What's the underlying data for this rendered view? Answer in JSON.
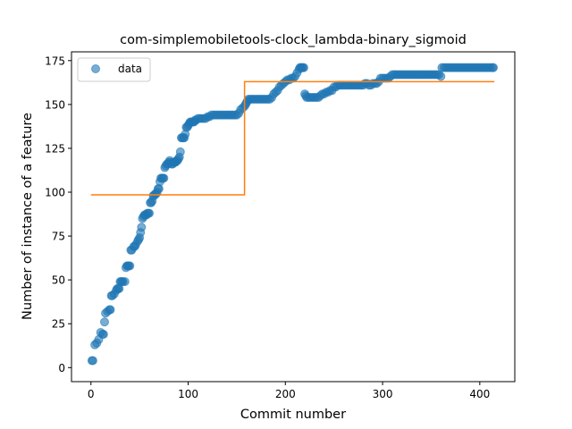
{
  "chart_data": {
    "type": "scatter",
    "title": "com-simplemobiletools-clock_lambda-binary_sigmoid",
    "xlabel": "Commit number",
    "ylabel": "Number of instance of a feature",
    "xlim": [
      -20,
      436
    ],
    "ylim": [
      -8,
      180
    ],
    "xticks": [
      0,
      100,
      200,
      300,
      400
    ],
    "yticks": [
      0,
      25,
      50,
      75,
      100,
      125,
      150,
      175
    ],
    "grid": false,
    "legend": {
      "position": "top-left",
      "entries": [
        "data"
      ]
    },
    "series": [
      {
        "name": "data",
        "kind": "scatter",
        "color": "#1f77b4",
        "points": [
          [
            1,
            4
          ],
          [
            2,
            4
          ],
          [
            4,
            13
          ],
          [
            6,
            14
          ],
          [
            8,
            16
          ],
          [
            10,
            20
          ],
          [
            12,
            19
          ],
          [
            13,
            19
          ],
          [
            14,
            26
          ],
          [
            15,
            31
          ],
          [
            17,
            32
          ],
          [
            19,
            33
          ],
          [
            20,
            33
          ],
          [
            21,
            41
          ],
          [
            22,
            41
          ],
          [
            24,
            42
          ],
          [
            26,
            44
          ],
          [
            27,
            45
          ],
          [
            28,
            45
          ],
          [
            29,
            45
          ],
          [
            30,
            49
          ],
          [
            31,
            49
          ],
          [
            32,
            49
          ],
          [
            33,
            49
          ],
          [
            35,
            49
          ],
          [
            36,
            57
          ],
          [
            37,
            58
          ],
          [
            38,
            58
          ],
          [
            39,
            58
          ],
          [
            40,
            58
          ],
          [
            41,
            67
          ],
          [
            42,
            67
          ],
          [
            44,
            69
          ],
          [
            45,
            69
          ],
          [
            46,
            70
          ],
          [
            48,
            72
          ],
          [
            49,
            73
          ],
          [
            50,
            74
          ],
          [
            51,
            77
          ],
          [
            52,
            80
          ],
          [
            53,
            85
          ],
          [
            54,
            86
          ],
          [
            55,
            87
          ],
          [
            56,
            87
          ],
          [
            57,
            87
          ],
          [
            58,
            88
          ],
          [
            59,
            88
          ],
          [
            60,
            88
          ],
          [
            61,
            94
          ],
          [
            62,
            94
          ],
          [
            63,
            95
          ],
          [
            64,
            98
          ],
          [
            65,
            98
          ],
          [
            66,
            99
          ],
          [
            67,
            99
          ],
          [
            68,
            100
          ],
          [
            69,
            102
          ],
          [
            70,
            102
          ],
          [
            71,
            106
          ],
          [
            72,
            108
          ],
          [
            73,
            108
          ],
          [
            74,
            108
          ],
          [
            75,
            108
          ],
          [
            76,
            114
          ],
          [
            77,
            115
          ],
          [
            78,
            116
          ],
          [
            79,
            116
          ],
          [
            80,
            117
          ],
          [
            81,
            118
          ],
          [
            82,
            117
          ],
          [
            83,
            116
          ],
          [
            84,
            116
          ],
          [
            85,
            117
          ],
          [
            86,
            117
          ],
          [
            87,
            117
          ],
          [
            88,
            118
          ],
          [
            89,
            118
          ],
          [
            90,
            119
          ],
          [
            91,
            120
          ],
          [
            92,
            123
          ],
          [
            93,
            131
          ],
          [
            94,
            131
          ],
          [
            95,
            131
          ],
          [
            96,
            131
          ],
          [
            97,
            133
          ],
          [
            98,
            137
          ],
          [
            99,
            137
          ],
          [
            100,
            138
          ],
          [
            101,
            139
          ],
          [
            102,
            140
          ],
          [
            103,
            140
          ],
          [
            104,
            140
          ],
          [
            105,
            140
          ],
          [
            106,
            140
          ],
          [
            107,
            141
          ],
          [
            108,
            141
          ],
          [
            110,
            142
          ],
          [
            112,
            142
          ],
          [
            114,
            142
          ],
          [
            116,
            142
          ],
          [
            118,
            142
          ],
          [
            120,
            143
          ],
          [
            122,
            143
          ],
          [
            124,
            144
          ],
          [
            126,
            144
          ],
          [
            128,
            144
          ],
          [
            130,
            144
          ],
          [
            132,
            144
          ],
          [
            134,
            144
          ],
          [
            136,
            144
          ],
          [
            138,
            144
          ],
          [
            140,
            144
          ],
          [
            142,
            144
          ],
          [
            144,
            144
          ],
          [
            146,
            144
          ],
          [
            148,
            144
          ],
          [
            150,
            144
          ],
          [
            152,
            145
          ],
          [
            154,
            147
          ],
          [
            156,
            148
          ],
          [
            158,
            149
          ],
          [
            159,
            150
          ],
          [
            160,
            151
          ],
          [
            161,
            152
          ],
          [
            162,
            153
          ],
          [
            164,
            153
          ],
          [
            166,
            153
          ],
          [
            168,
            153
          ],
          [
            170,
            153
          ],
          [
            172,
            153
          ],
          [
            174,
            153
          ],
          [
            176,
            153
          ],
          [
            178,
            153
          ],
          [
            180,
            153
          ],
          [
            182,
            153
          ],
          [
            184,
            153
          ],
          [
            186,
            154
          ],
          [
            188,
            156
          ],
          [
            190,
            157
          ],
          [
            192,
            158
          ],
          [
            194,
            160
          ],
          [
            196,
            161
          ],
          [
            198,
            162
          ],
          [
            200,
            163
          ],
          [
            202,
            164
          ],
          [
            204,
            164
          ],
          [
            206,
            165
          ],
          [
            208,
            165
          ],
          [
            210,
            166
          ],
          [
            212,
            168
          ],
          [
            214,
            170
          ],
          [
            215,
            171
          ],
          [
            216,
            171
          ],
          [
            217,
            171
          ],
          [
            218,
            171
          ],
          [
            219,
            171
          ],
          [
            220,
            156
          ],
          [
            221,
            155
          ],
          [
            222,
            154
          ],
          [
            224,
            154
          ],
          [
            226,
            154
          ],
          [
            228,
            154
          ],
          [
            230,
            154
          ],
          [
            232,
            154
          ],
          [
            234,
            154
          ],
          [
            236,
            155
          ],
          [
            238,
            156
          ],
          [
            240,
            156
          ],
          [
            242,
            157
          ],
          [
            244,
            157
          ],
          [
            246,
            158
          ],
          [
            248,
            158
          ],
          [
            250,
            160
          ],
          [
            252,
            160
          ],
          [
            254,
            161
          ],
          [
            256,
            161
          ],
          [
            258,
            161
          ],
          [
            260,
            161
          ],
          [
            262,
            161
          ],
          [
            264,
            161
          ],
          [
            266,
            161
          ],
          [
            268,
            161
          ],
          [
            270,
            161
          ],
          [
            272,
            161
          ],
          [
            274,
            161
          ],
          [
            276,
            161
          ],
          [
            278,
            161
          ],
          [
            280,
            161
          ],
          [
            282,
            162
          ],
          [
            284,
            162
          ],
          [
            286,
            161
          ],
          [
            288,
            161
          ],
          [
            290,
            162
          ],
          [
            292,
            162
          ],
          [
            294,
            162
          ],
          [
            296,
            163
          ],
          [
            298,
            165
          ],
          [
            300,
            165
          ],
          [
            302,
            165
          ],
          [
            304,
            165
          ],
          [
            306,
            165
          ],
          [
            308,
            166
          ],
          [
            310,
            167
          ],
          [
            312,
            167
          ],
          [
            314,
            167
          ],
          [
            316,
            167
          ],
          [
            318,
            167
          ],
          [
            320,
            167
          ],
          [
            322,
            167
          ],
          [
            324,
            167
          ],
          [
            326,
            167
          ],
          [
            328,
            167
          ],
          [
            330,
            167
          ],
          [
            332,
            167
          ],
          [
            334,
            167
          ],
          [
            336,
            167
          ],
          [
            338,
            167
          ],
          [
            340,
            167
          ],
          [
            342,
            167
          ],
          [
            344,
            167
          ],
          [
            346,
            167
          ],
          [
            348,
            167
          ],
          [
            350,
            167
          ],
          [
            352,
            167
          ],
          [
            354,
            167
          ],
          [
            356,
            167
          ],
          [
            358,
            167
          ],
          [
            360,
            166
          ],
          [
            361,
            171
          ],
          [
            363,
            171
          ],
          [
            365,
            171
          ],
          [
            367,
            171
          ],
          [
            369,
            171
          ],
          [
            371,
            171
          ],
          [
            373,
            171
          ],
          [
            375,
            171
          ],
          [
            377,
            171
          ],
          [
            379,
            171
          ],
          [
            381,
            171
          ],
          [
            383,
            171
          ],
          [
            385,
            171
          ],
          [
            387,
            171
          ],
          [
            389,
            171
          ],
          [
            391,
            171
          ],
          [
            393,
            171
          ],
          [
            395,
            171
          ],
          [
            397,
            171
          ],
          [
            399,
            171
          ],
          [
            401,
            171
          ],
          [
            403,
            171
          ],
          [
            405,
            171
          ],
          [
            407,
            171
          ],
          [
            409,
            171
          ],
          [
            411,
            171
          ],
          [
            413,
            171
          ],
          [
            414,
            171
          ]
        ]
      },
      {
        "kind": "step-line",
        "color": "#ff7f0e",
        "points": [
          [
            0,
            98.5
          ],
          [
            158,
            98.5
          ],
          [
            158,
            163
          ],
          [
            415,
            163
          ]
        ]
      }
    ]
  }
}
